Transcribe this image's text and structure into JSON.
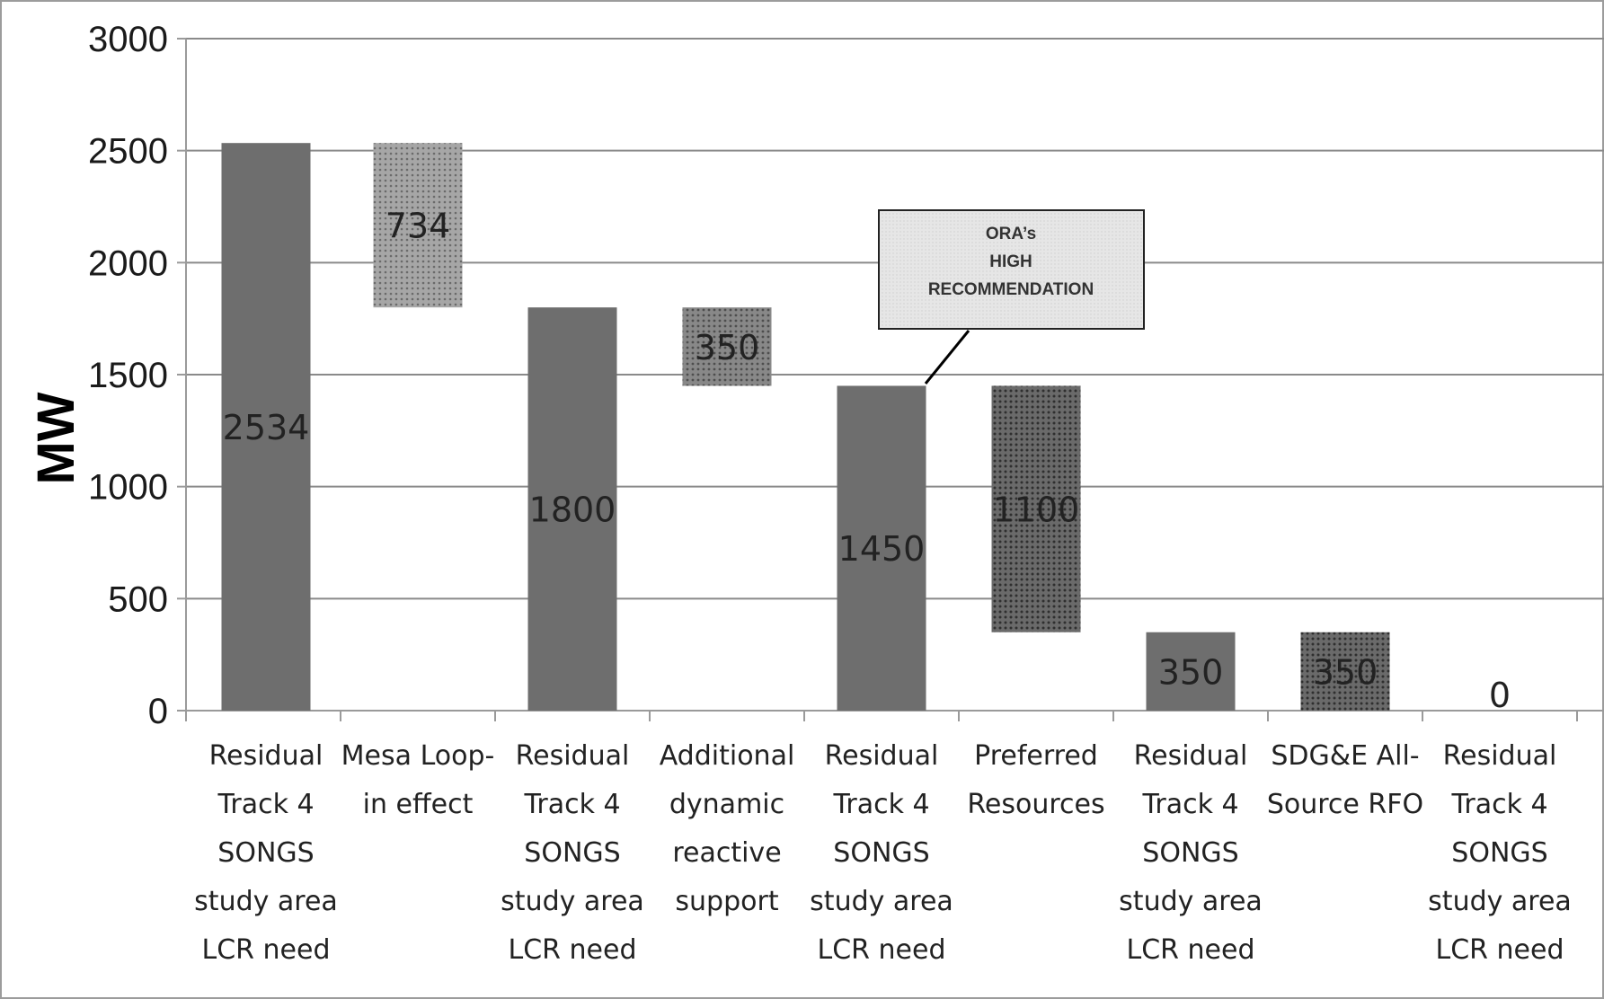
{
  "chart_data": {
    "type": "bar",
    "subtype": "waterfall",
    "title": "",
    "ylabel": "MW",
    "xlabel": "",
    "ylim": [
      0,
      3000
    ],
    "yticks": [
      0,
      500,
      1000,
      1500,
      2000,
      2500,
      3000
    ],
    "grid": true,
    "legend": "none",
    "categories": [
      [
        "Residual",
        "Track 4",
        "SONGS",
        "study area",
        "LCR need"
      ],
      [
        "Mesa Loop-",
        "in effect"
      ],
      [
        "Residual",
        "Track 4",
        "SONGS",
        "study area",
        "LCR need"
      ],
      [
        "Additional",
        "dynamic",
        "reactive",
        "support"
      ],
      [
        "Residual",
        "Track 4",
        "SONGS",
        "study area",
        "LCR need"
      ],
      [
        "Preferred",
        "Resources"
      ],
      [
        "Residual",
        "Track 4",
        "SONGS",
        "study area",
        "LCR need"
      ],
      [
        "SDG&E All-",
        "Source RFO"
      ],
      [
        "Residual",
        "Track 4",
        "SONGS",
        "study area",
        "LCR need"
      ]
    ],
    "bars": [
      {
        "kind": "total",
        "start": 0,
        "end": 2534,
        "value": 2534,
        "label": "2534"
      },
      {
        "kind": "decrease",
        "start": 1800,
        "end": 2534,
        "value": 734,
        "label": "734"
      },
      {
        "kind": "total",
        "start": 0,
        "end": 1800,
        "value": 1800,
        "label": "1800"
      },
      {
        "kind": "decrease",
        "start": 1450,
        "end": 1800,
        "value": 350,
        "label": "350"
      },
      {
        "kind": "total",
        "start": 0,
        "end": 1450,
        "value": 1450,
        "label": "1450"
      },
      {
        "kind": "decrease",
        "start": 350,
        "end": 1450,
        "value": 1100,
        "label": "1100"
      },
      {
        "kind": "total",
        "start": 0,
        "end": 350,
        "value": 350,
        "label": "350"
      },
      {
        "kind": "decrease",
        "start": 0,
        "end": 350,
        "value": 350,
        "label": "350"
      },
      {
        "kind": "total",
        "start": 0,
        "end": 0,
        "value": 0,
        "label": "0"
      }
    ],
    "annotation": {
      "lines": [
        "ORA’s",
        "HIGH",
        "RECOMMENDATION"
      ],
      "points_to_category_index": 4
    }
  },
  "colors": {
    "total_bar": "#6e6e6e",
    "pattern_light": "#9b9b9b",
    "pattern_medium": "#7a7a7a",
    "pattern_dark": "#5a5a5a",
    "gridline": "#8a8a8a",
    "axis": "#9a9a9a",
    "callout_fill": "#e3e3e3"
  }
}
